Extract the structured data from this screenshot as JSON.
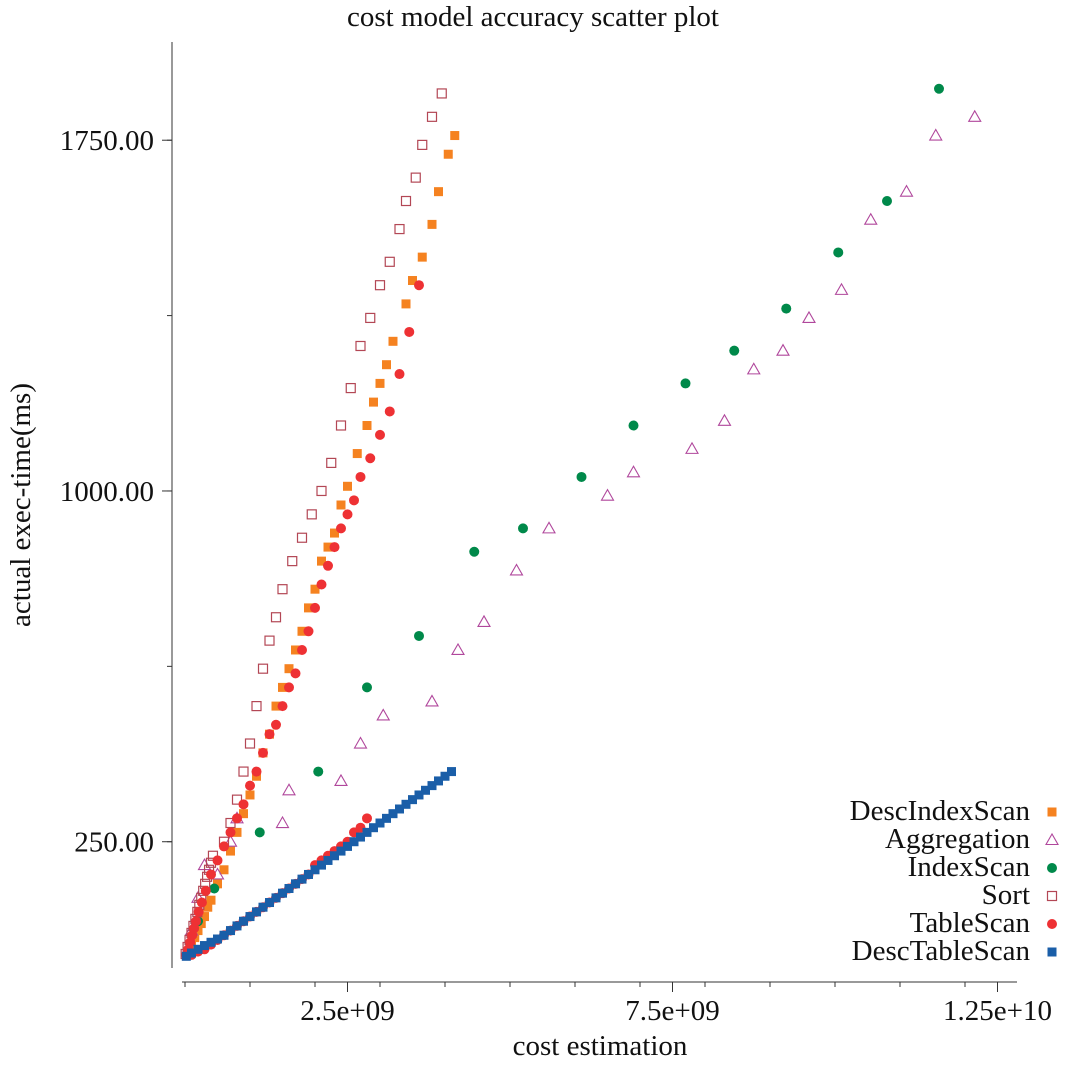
{
  "chart_data": {
    "type": "scatter",
    "title": "cost model accuracy scatter plot",
    "xlabel": "cost estimation",
    "ylabel": "actual exec-time(ms)",
    "xlim": [
      -200000000,
      12800000000
    ],
    "ylim": [
      -20,
      1960
    ],
    "x_ticks": [
      {
        "value": 2500000000,
        "label": "2.5e+09"
      },
      {
        "value": 7500000000,
        "label": "7.5e+09"
      },
      {
        "value": 12500000000,
        "label": "1.25e+10"
      }
    ],
    "x_minor_ticks": [
      0,
      1000000000,
      2000000000,
      3000000000,
      4000000000,
      5000000000,
      6000000000,
      7000000000,
      8000000000,
      9000000000,
      10000000000,
      11000000000,
      12000000000
    ],
    "y_ticks": [
      {
        "value": 250,
        "label": "250.00"
      },
      {
        "value": 1000,
        "label": "1000.00"
      },
      {
        "value": 1750,
        "label": "1750.00"
      }
    ],
    "y_minor_ticks": [
      250,
      625,
      1000,
      1375,
      1750
    ],
    "grid": false,
    "legend": "bottom-right",
    "series": [
      {
        "name": "DescIndexScan",
        "marker": "square-filled",
        "color": "#f58220",
        "points": [
          [
            50000000,
            15
          ],
          [
            100000000,
            30
          ],
          [
            150000000,
            45
          ],
          [
            200000000,
            60
          ],
          [
            250000000,
            75
          ],
          [
            300000000,
            90
          ],
          [
            350000000,
            110
          ],
          [
            400000000,
            125
          ],
          [
            500000000,
            160
          ],
          [
            600000000,
            190
          ],
          [
            700000000,
            230
          ],
          [
            800000000,
            270
          ],
          [
            900000000,
            310
          ],
          [
            1000000000,
            350
          ],
          [
            1100000000,
            390
          ],
          [
            1200000000,
            440
          ],
          [
            1300000000,
            480
          ],
          [
            1400000000,
            540
          ],
          [
            1500000000,
            580
          ],
          [
            1600000000,
            620
          ],
          [
            1700000000,
            660
          ],
          [
            1800000000,
            700
          ],
          [
            1900000000,
            750
          ],
          [
            2000000000,
            790
          ],
          [
            2100000000,
            850
          ],
          [
            2200000000,
            880
          ],
          [
            2300000000,
            910
          ],
          [
            2400000000,
            970
          ],
          [
            2500000000,
            1010
          ],
          [
            2650000000,
            1080
          ],
          [
            2800000000,
            1140
          ],
          [
            2900000000,
            1190
          ],
          [
            3000000000,
            1230
          ],
          [
            3100000000,
            1270
          ],
          [
            3200000000,
            1320
          ],
          [
            3400000000,
            1400
          ],
          [
            3500000000,
            1450
          ],
          [
            3650000000,
            1500
          ],
          [
            3800000000,
            1570
          ],
          [
            3900000000,
            1640
          ],
          [
            4050000000,
            1720
          ],
          [
            4150000000,
            1760
          ]
        ]
      },
      {
        "name": "Aggregation",
        "marker": "triangle-open",
        "color": "#b0479c",
        "points": [
          [
            100000000,
            60
          ],
          [
            200000000,
            130
          ],
          [
            300000000,
            200
          ],
          [
            500000000,
            180
          ],
          [
            700000000,
            250
          ],
          [
            800000000,
            300
          ],
          [
            1500000000,
            290
          ],
          [
            1600000000,
            360
          ],
          [
            2400000000,
            380
          ],
          [
            2700000000,
            460
          ],
          [
            3050000000,
            520
          ],
          [
            3800000000,
            550
          ],
          [
            4200000000,
            660
          ],
          [
            4600000000,
            720
          ],
          [
            5100000000,
            830
          ],
          [
            5600000000,
            920
          ],
          [
            6500000000,
            990
          ],
          [
            6900000000,
            1040
          ],
          [
            7800000000,
            1090
          ],
          [
            8300000000,
            1150
          ],
          [
            8750000000,
            1260
          ],
          [
            9200000000,
            1300
          ],
          [
            9600000000,
            1370
          ],
          [
            10100000000,
            1430
          ],
          [
            10550000000,
            1580
          ],
          [
            11100000000,
            1640
          ],
          [
            11550000000,
            1760
          ],
          [
            12150000000,
            1800
          ]
        ]
      },
      {
        "name": "IndexScan",
        "marker": "circle-filled",
        "color": "#00894a",
        "points": [
          [
            200000000,
            80
          ],
          [
            450000000,
            150
          ],
          [
            1150000000,
            270
          ],
          [
            2050000000,
            400
          ],
          [
            2800000000,
            580
          ],
          [
            3600000000,
            690
          ],
          [
            4450000000,
            870
          ],
          [
            5200000000,
            920
          ],
          [
            6100000000,
            1030
          ],
          [
            6900000000,
            1140
          ],
          [
            7700000000,
            1230
          ],
          [
            8450000000,
            1300
          ],
          [
            9250000000,
            1390
          ],
          [
            10050000000,
            1510
          ],
          [
            10800000000,
            1620
          ],
          [
            11600000000,
            1860
          ]
        ]
      },
      {
        "name": "Sort",
        "marker": "square-open",
        "color": "#b34755",
        "points": [
          [
            10000000,
            10
          ],
          [
            40000000,
            25
          ],
          [
            70000000,
            40
          ],
          [
            100000000,
            55
          ],
          [
            130000000,
            70
          ],
          [
            160000000,
            85
          ],
          [
            190000000,
            100
          ],
          [
            220000000,
            115
          ],
          [
            250000000,
            130
          ],
          [
            280000000,
            145
          ],
          [
            310000000,
            160
          ],
          [
            340000000,
            175
          ],
          [
            370000000,
            190
          ],
          [
            400000000,
            205
          ],
          [
            430000000,
            220
          ],
          [
            600000000,
            250
          ],
          [
            700000000,
            290
          ],
          [
            800000000,
            340
          ],
          [
            900000000,
            400
          ],
          [
            1000000000,
            460
          ],
          [
            1100000000,
            540
          ],
          [
            1200000000,
            620
          ],
          [
            1300000000,
            680
          ],
          [
            1400000000,
            730
          ],
          [
            1500000000,
            790
          ],
          [
            1650000000,
            850
          ],
          [
            1800000000,
            900
          ],
          [
            1950000000,
            950
          ],
          [
            2100000000,
            1000
          ],
          [
            2250000000,
            1060
          ],
          [
            2400000000,
            1140
          ],
          [
            2550000000,
            1220
          ],
          [
            2700000000,
            1310
          ],
          [
            2850000000,
            1370
          ],
          [
            3000000000,
            1440
          ],
          [
            3150000000,
            1490
          ],
          [
            3300000000,
            1560
          ],
          [
            3400000000,
            1620
          ],
          [
            3550000000,
            1670
          ],
          [
            3650000000,
            1740
          ],
          [
            3800000000,
            1800
          ],
          [
            3950000000,
            1850
          ]
        ]
      },
      {
        "name": "TableScan",
        "marker": "circle-filled",
        "color": "#ee3134",
        "points": [
          [
            20000000,
            8
          ],
          [
            50000000,
            20
          ],
          [
            80000000,
            35
          ],
          [
            110000000,
            50
          ],
          [
            140000000,
            65
          ],
          [
            170000000,
            80
          ],
          [
            210000000,
            100
          ],
          [
            260000000,
            120
          ],
          [
            320000000,
            145
          ],
          [
            400000000,
            180
          ],
          [
            500000000,
            210
          ],
          [
            600000000,
            240
          ],
          [
            700000000,
            270
          ],
          [
            800000000,
            300
          ],
          [
            900000000,
            330
          ],
          [
            1000000000,
            370
          ],
          [
            1100000000,
            400
          ],
          [
            1200000000,
            440
          ],
          [
            1300000000,
            480
          ],
          [
            1400000000,
            500
          ],
          [
            1500000000,
            540
          ],
          [
            1600000000,
            580
          ],
          [
            1700000000,
            610
          ],
          [
            1800000000,
            660
          ],
          [
            1900000000,
            700
          ],
          [
            2000000000,
            750
          ],
          [
            2100000000,
            800
          ],
          [
            2200000000,
            840
          ],
          [
            2300000000,
            880
          ],
          [
            2400000000,
            920
          ],
          [
            2500000000,
            950
          ],
          [
            2600000000,
            980
          ],
          [
            2700000000,
            1030
          ],
          [
            2850000000,
            1070
          ],
          [
            3000000000,
            1120
          ],
          [
            3150000000,
            1170
          ],
          [
            3300000000,
            1250
          ],
          [
            3450000000,
            1340
          ],
          [
            3600000000,
            1440
          ],
          [
            2800000000,
            300
          ],
          [
            2700000000,
            280
          ],
          [
            2600000000,
            270
          ],
          [
            2500000000,
            250
          ],
          [
            2400000000,
            240
          ],
          [
            2300000000,
            230
          ],
          [
            2200000000,
            220
          ],
          [
            2100000000,
            210
          ],
          [
            2000000000,
            200
          ],
          [
            1900000000,
            180
          ],
          [
            1800000000,
            170
          ],
          [
            1700000000,
            160
          ],
          [
            1600000000,
            150
          ],
          [
            1500000000,
            140
          ],
          [
            1400000000,
            130
          ],
          [
            1300000000,
            120
          ],
          [
            1200000000,
            110
          ],
          [
            1100000000,
            100
          ],
          [
            1000000000,
            90
          ],
          [
            900000000,
            80
          ],
          [
            800000000,
            70
          ],
          [
            700000000,
            60
          ],
          [
            600000000,
            50
          ],
          [
            500000000,
            40
          ],
          [
            400000000,
            30
          ],
          [
            300000000,
            20
          ],
          [
            200000000,
            15
          ],
          [
            100000000,
            8
          ]
        ]
      },
      {
        "name": "DescTableScan",
        "marker": "square-filled",
        "color": "#1a5ea8",
        "points": [
          [
            20000000,
            5
          ],
          [
            100000000,
            12
          ],
          [
            200000000,
            20
          ],
          [
            300000000,
            28
          ],
          [
            400000000,
            35
          ],
          [
            500000000,
            42
          ],
          [
            600000000,
            50
          ],
          [
            700000000,
            60
          ],
          [
            800000000,
            70
          ],
          [
            900000000,
            80
          ],
          [
            1000000000,
            90
          ],
          [
            1100000000,
            100
          ],
          [
            1200000000,
            110
          ],
          [
            1300000000,
            120
          ],
          [
            1400000000,
            130
          ],
          [
            1500000000,
            140
          ],
          [
            1600000000,
            150
          ],
          [
            1700000000,
            160
          ],
          [
            1800000000,
            170
          ],
          [
            1900000000,
            180
          ],
          [
            2000000000,
            190
          ],
          [
            2100000000,
            200
          ],
          [
            2200000000,
            210
          ],
          [
            2300000000,
            220
          ],
          [
            2400000000,
            230
          ],
          [
            2500000000,
            240
          ],
          [
            2600000000,
            250
          ],
          [
            2700000000,
            260
          ],
          [
            2800000000,
            270
          ],
          [
            2900000000,
            280
          ],
          [
            3000000000,
            290
          ],
          [
            3100000000,
            300
          ],
          [
            3200000000,
            310
          ],
          [
            3300000000,
            320
          ],
          [
            3400000000,
            330
          ],
          [
            3500000000,
            340
          ],
          [
            3600000000,
            350
          ],
          [
            3700000000,
            360
          ],
          [
            3800000000,
            370
          ],
          [
            3900000000,
            380
          ],
          [
            4000000000,
            390
          ],
          [
            4100000000,
            400
          ]
        ]
      }
    ]
  }
}
